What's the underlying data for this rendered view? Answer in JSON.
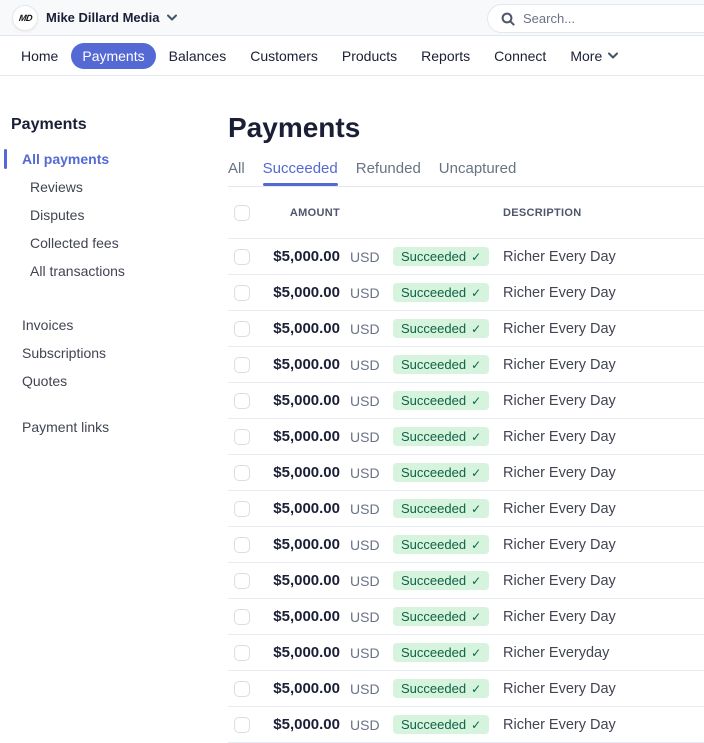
{
  "colors": {
    "accent": "#5469d4",
    "badge_bg": "#d5f3dd",
    "badge_text": "#0e6245"
  },
  "icons": {
    "check": "✓"
  },
  "topbar": {
    "avatar_initials": "MD",
    "business_name": "Mike Dillard Media",
    "search_placeholder": "Search..."
  },
  "nav": {
    "items": [
      {
        "label": "Home",
        "active": false,
        "has_chevron": false
      },
      {
        "label": "Payments",
        "active": true,
        "has_chevron": false
      },
      {
        "label": "Balances",
        "active": false,
        "has_chevron": false
      },
      {
        "label": "Customers",
        "active": false,
        "has_chevron": false
      },
      {
        "label": "Products",
        "active": false,
        "has_chevron": false
      },
      {
        "label": "Reports",
        "active": false,
        "has_chevron": false
      },
      {
        "label": "Connect",
        "active": false,
        "has_chevron": false
      },
      {
        "label": "More",
        "active": false,
        "has_chevron": true
      }
    ]
  },
  "sidebar": {
    "heading": "Payments",
    "groups": [
      {
        "items": [
          {
            "label": "All payments",
            "active": true,
            "indent": false
          },
          {
            "label": "Reviews",
            "active": false,
            "indent": true
          },
          {
            "label": "Disputes",
            "active": false,
            "indent": true
          },
          {
            "label": "Collected fees",
            "active": false,
            "indent": true
          },
          {
            "label": "All transactions",
            "active": false,
            "indent": true
          }
        ]
      },
      {
        "items": [
          {
            "label": "Invoices",
            "active": false,
            "indent": false
          },
          {
            "label": "Subscriptions",
            "active": false,
            "indent": false
          },
          {
            "label": "Quotes",
            "active": false,
            "indent": false
          }
        ]
      },
      {
        "items": [
          {
            "label": "Payment links",
            "active": false,
            "indent": false
          }
        ]
      }
    ]
  },
  "main": {
    "title": "Payments",
    "tabs": [
      {
        "label": "All",
        "active": false
      },
      {
        "label": "Succeeded",
        "active": true
      },
      {
        "label": "Refunded",
        "active": false
      },
      {
        "label": "Uncaptured",
        "active": false
      }
    ],
    "table": {
      "columns": {
        "amount": "AMOUNT",
        "description": "DESCRIPTION"
      },
      "rows": [
        {
          "amount": "$5,000.00",
          "currency": "USD",
          "status": "Succeeded",
          "description": "Richer Every Day"
        },
        {
          "amount": "$5,000.00",
          "currency": "USD",
          "status": "Succeeded",
          "description": "Richer Every Day"
        },
        {
          "amount": "$5,000.00",
          "currency": "USD",
          "status": "Succeeded",
          "description": "Richer Every Day"
        },
        {
          "amount": "$5,000.00",
          "currency": "USD",
          "status": "Succeeded",
          "description": "Richer Every Day"
        },
        {
          "amount": "$5,000.00",
          "currency": "USD",
          "status": "Succeeded",
          "description": "Richer Every Day"
        },
        {
          "amount": "$5,000.00",
          "currency": "USD",
          "status": "Succeeded",
          "description": "Richer Every Day"
        },
        {
          "amount": "$5,000.00",
          "currency": "USD",
          "status": "Succeeded",
          "description": "Richer Every Day"
        },
        {
          "amount": "$5,000.00",
          "currency": "USD",
          "status": "Succeeded",
          "description": "Richer Every Day"
        },
        {
          "amount": "$5,000.00",
          "currency": "USD",
          "status": "Succeeded",
          "description": "Richer Every Day"
        },
        {
          "amount": "$5,000.00",
          "currency": "USD",
          "status": "Succeeded",
          "description": "Richer Every Day"
        },
        {
          "amount": "$5,000.00",
          "currency": "USD",
          "status": "Succeeded",
          "description": "Richer Every Day"
        },
        {
          "amount": "$5,000.00",
          "currency": "USD",
          "status": "Succeeded",
          "description": "Richer Everyday"
        },
        {
          "amount": "$5,000.00",
          "currency": "USD",
          "status": "Succeeded",
          "description": "Richer Every Day"
        },
        {
          "amount": "$5,000.00",
          "currency": "USD",
          "status": "Succeeded",
          "description": "Richer Every Day"
        }
      ]
    }
  }
}
